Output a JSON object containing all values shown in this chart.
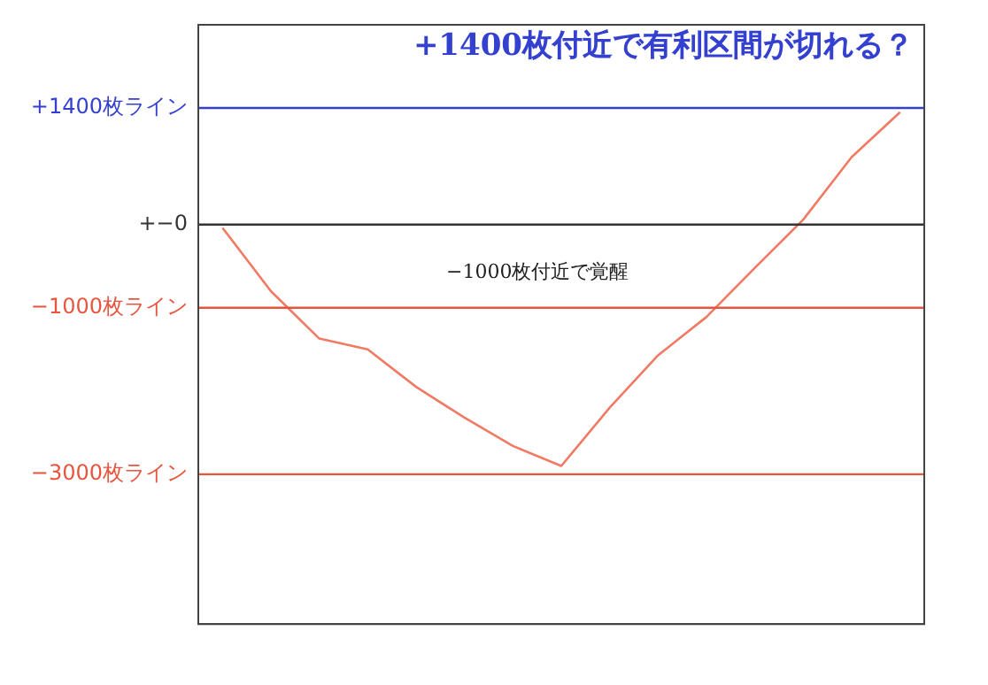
{
  "chart_data": {
    "type": "line",
    "title": "+1400枚付近で有利区間が切れる？",
    "annotations": [
      "−1000枚付近で覚醒"
    ],
    "categories": [
      null,
      null,
      null,
      null,
      null,
      null,
      null,
      null,
      null,
      null,
      null,
      null,
      null,
      null,
      null
    ],
    "series": [
      {
        "color": "#f07a63",
        "values": [
          -40,
          -800,
          -1370,
          -1500,
          -1950,
          -2320,
          -2660,
          -2900,
          -2200,
          -1570,
          -1110,
          -520,
          60,
          810,
          1350
        ]
      }
    ],
    "ylim": [
      -4800,
      2400
    ],
    "yticks": [
      {
        "value": 1400,
        "label": "+1400枚ライン"
      },
      {
        "value": 0,
        "label": "+−0"
      },
      {
        "value": -1000,
        "label": "−1000枚ライン"
      },
      {
        "value": -3000,
        "label": "−3000枚ライン"
      }
    ],
    "ref_lines": [
      {
        "axis": "y",
        "value": 1400,
        "color": "#3340d0"
      },
      {
        "axis": "y",
        "value": 0,
        "color": "#333333"
      },
      {
        "axis": "y",
        "value": -1000,
        "color": "#e8553f"
      },
      {
        "axis": "y",
        "value": -3000,
        "color": "#e8553f"
      }
    ],
    "grid": false,
    "legend": false,
    "marker": "none",
    "line_style": "solid"
  }
}
